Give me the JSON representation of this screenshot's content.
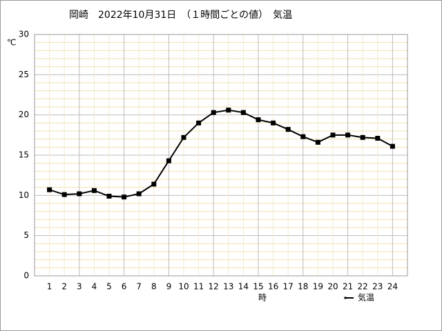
{
  "chart_data": {
    "type": "line",
    "title": "岡崎　2022年10月31日　（１時間ごとの値）　気温",
    "y_label": "℃",
    "x_label": "時",
    "x": [
      1,
      2,
      3,
      4,
      5,
      6,
      7,
      8,
      9,
      10,
      11,
      12,
      13,
      14,
      15,
      16,
      17,
      18,
      19,
      20,
      21,
      22,
      23,
      24
    ],
    "series": [
      {
        "name": "気温",
        "color": "#000000",
        "values": [
          10.7,
          10.1,
          10.2,
          10.6,
          9.9,
          9.8,
          10.2,
          11.4,
          14.3,
          17.2,
          19.0,
          20.3,
          20.6,
          20.3,
          19.4,
          19.0,
          18.2,
          17.3,
          16.6,
          17.5,
          17.5,
          17.2,
          17.1,
          16.1
        ]
      }
    ],
    "xlim": [
      0,
      25
    ],
    "xticks": [
      1,
      2,
      3,
      4,
      5,
      6,
      7,
      8,
      9,
      10,
      11,
      12,
      13,
      14,
      15,
      16,
      17,
      18,
      19,
      20,
      21,
      22,
      23,
      24
    ],
    "ylim": [
      0,
      30
    ],
    "yticks": [
      0,
      5,
      10,
      15,
      20,
      25,
      30
    ],
    "grid": true,
    "legend": "bottom-right"
  }
}
